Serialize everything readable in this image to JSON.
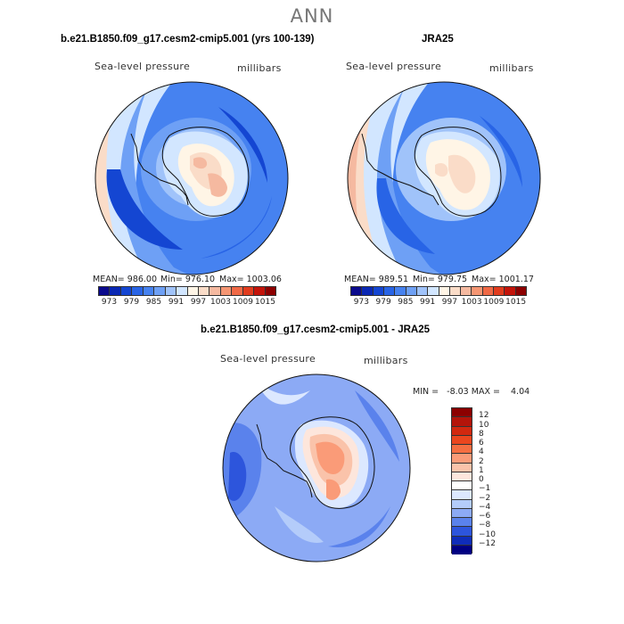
{
  "page_title": "ANN",
  "panels": [
    {
      "case_title": "b.e21.B1850.f09_g17.cesm2-cmip5.001 (yrs 100-139)",
      "variable": "Sea-level pressure",
      "units": "millibars",
      "mean_text": "MEAN= 986.00",
      "min_text": "Min= 976.10",
      "max_text": "Max= 1003.06"
    },
    {
      "case_title": "JRA25",
      "variable": "Sea-level pressure",
      "units": "millibars",
      "mean_text": "MEAN= 989.51",
      "min_text": "Min= 979.75",
      "max_text": "Max= 1001.17"
    }
  ],
  "diff_panel": {
    "case_title": "b.e21.B1850.f09_g17.cesm2-cmip5.001 - JRA25",
    "variable": "Sea-level pressure",
    "units": "millibars",
    "minmax_text": "MIN =   -8.03 MAX =    4.04"
  },
  "abs_colorbar": {
    "labels": [
      "973",
      "979",
      "985",
      "991",
      "997",
      "1003",
      "1009",
      "1015"
    ],
    "colors": [
      "#0a0a8c",
      "#0a28b4",
      "#1446d2",
      "#2864e6",
      "#4682f0",
      "#6ea0f5",
      "#a0c3fa",
      "#d2e6ff",
      "#fff5e6",
      "#fadcc8",
      "#f5b9a0",
      "#f59673",
      "#f06946",
      "#e13c1e",
      "#c3140a",
      "#8c0000"
    ]
  },
  "diff_colorbar": {
    "labels": [
      "12",
      "10",
      "8",
      "6",
      "4",
      "2",
      "1",
      "0",
      "−1",
      "−2",
      "−4",
      "−6",
      "−8",
      "−10",
      "−12"
    ],
    "colors": [
      "#8c0000",
      "#b4140a",
      "#d2280f",
      "#eb461e",
      "#f56e41",
      "#fa9b78",
      "#fac3aa",
      "#fde6dc",
      "#ffffff",
      "#dce8ff",
      "#b4ccfa",
      "#8caaf5",
      "#5a82ec",
      "#2d55dc",
      "#0f2db9",
      "#000082"
    ]
  }
}
